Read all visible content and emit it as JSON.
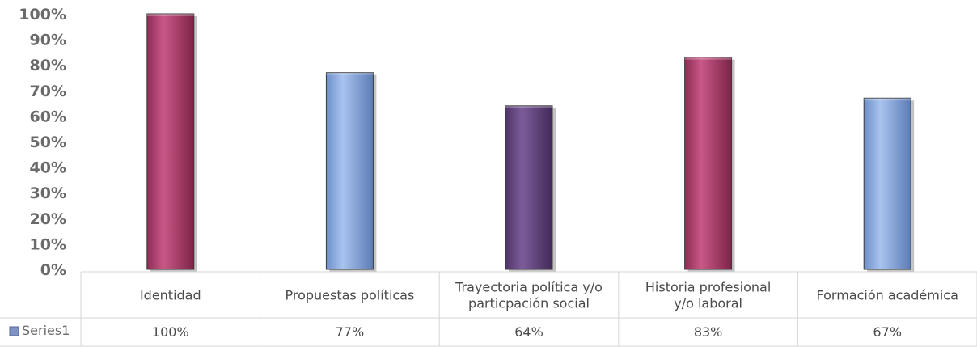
{
  "chart_data": {
    "type": "bar",
    "categories": [
      [
        "Identidad"
      ],
      [
        "Propuestas políticas"
      ],
      [
        "Trayectoria política y/o",
        "particpación social"
      ],
      [
        "Historia profesional",
        "y/o laboral"
      ],
      [
        "Formación académica"
      ]
    ],
    "series": [
      {
        "name": "Series1",
        "values": [
          100,
          77,
          64,
          83,
          67
        ]
      }
    ],
    "value_labels": [
      "100%",
      "77%",
      "64%",
      "83%",
      "67%"
    ],
    "y_ticks": [
      "0%",
      "10%",
      "20%",
      "30%",
      "40%",
      "50%",
      "60%",
      "70%",
      "80%",
      "90%",
      "100%"
    ],
    "ylim": [
      0,
      100
    ],
    "bar_colors": [
      "#c04a78",
      "#93b3e6",
      "#6e4f8a",
      "#c04a78",
      "#93b3e6"
    ],
    "legend_marker_color": "#7f93c8",
    "data_table": true,
    "grid": false
  }
}
